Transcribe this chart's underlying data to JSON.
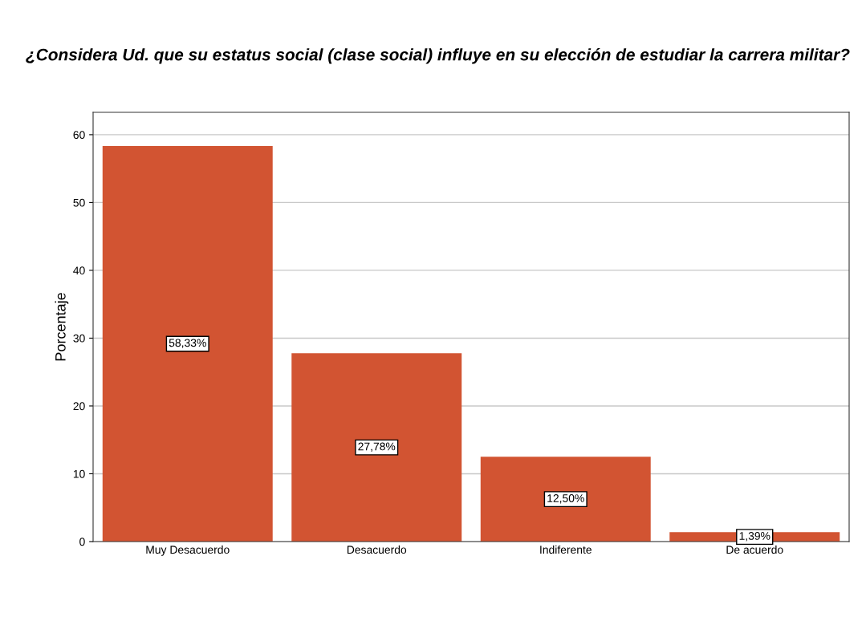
{
  "chart_data": {
    "type": "bar",
    "title": "¿Considera Ud. que su estatus social (clase social) influye en su elección de estudiar la carrera militar?",
    "ylabel": "Porcentaje",
    "categories": [
      "Muy Desacuerdo",
      "Desacuerdo",
      "Indiferente",
      "De acuerdo"
    ],
    "values": [
      58.33,
      27.78,
      12.5,
      1.39
    ],
    "value_labels": [
      "58,33%",
      "27,78%",
      "12,50%",
      "1,39%"
    ],
    "color": "#d25432",
    "ylim": [
      0,
      63.3
    ],
    "yticks": [
      0,
      10,
      20,
      30,
      40,
      50,
      60
    ],
    "grid": "y",
    "legend": false
  }
}
